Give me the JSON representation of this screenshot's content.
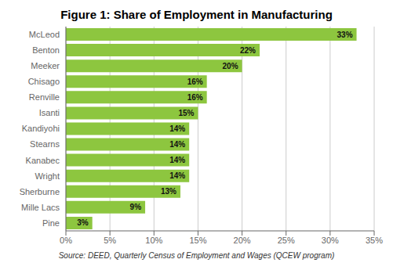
{
  "chart_data": {
    "type": "bar",
    "orientation": "horizontal",
    "title": "Figure 1: Share of Employment in Manufacturing",
    "categories": [
      "Pine",
      "Mille Lacs",
      "Sherburne",
      "Wright",
      "Kanabec",
      "Stearns",
      "Kandiyohi",
      "Isanti",
      "Renville",
      "Chisago",
      "Meeker",
      "Benton",
      "McLeod"
    ],
    "values": [
      3,
      9,
      13,
      14,
      14,
      14,
      14,
      15,
      16,
      16,
      20,
      22,
      33
    ],
    "value_labels": [
      "3%",
      "9%",
      "13%",
      "14%",
      "14%",
      "14%",
      "14%",
      "15%",
      "16%",
      "16%",
      "20%",
      "22%",
      "33%"
    ],
    "data_labels": true,
    "color": "#8dc63f",
    "xlim": [
      0,
      35
    ],
    "xticks": [
      {
        "value": 0,
        "label": "0%"
      },
      {
        "value": 5,
        "label": "5%"
      },
      {
        "value": 10,
        "label": "10%"
      },
      {
        "value": 15,
        "label": "15%"
      },
      {
        "value": 20,
        "label": "20%"
      },
      {
        "value": 25,
        "label": "25%"
      },
      {
        "value": 30,
        "label": "30%"
      },
      {
        "value": 35,
        "label": "35%"
      }
    ],
    "grid": true,
    "annotations": [
      "Source: DEED, Quarterly Census of Employment and Wages (QCEW program)"
    ]
  }
}
